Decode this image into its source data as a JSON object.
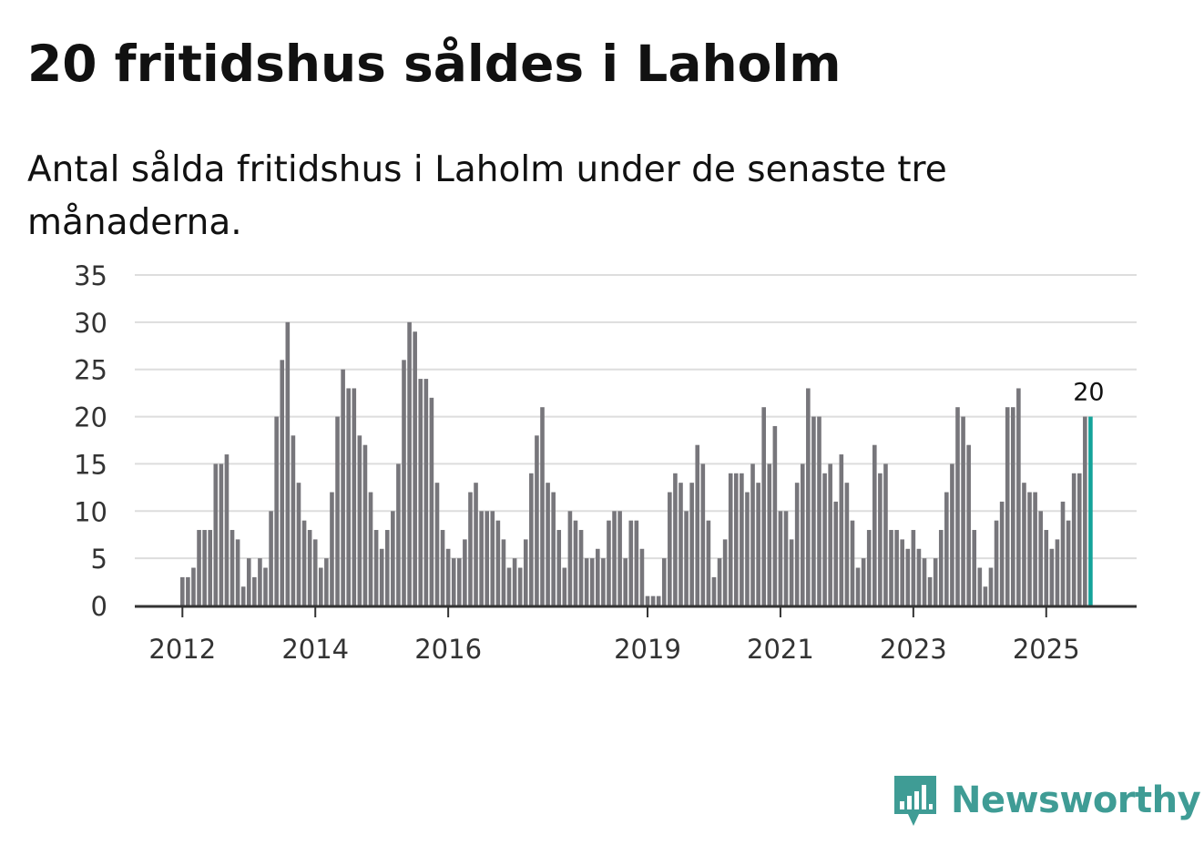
{
  "title": "20 fritidshus såldes i Laholm",
  "subtitle": "Antal sålda fritidshus i Laholm under de senaste tre månaderna.",
  "brand": {
    "name": "Newsworthy",
    "color": "#3f9c95",
    "logo_icon": "bar-chart-speech-bubble-icon"
  },
  "colors": {
    "bar": "#77767b",
    "highlight": "#14a39a",
    "grid": "#dddddd",
    "axis": "#333333",
    "text": "#111111"
  },
  "chart_data": {
    "type": "bar",
    "title": "20 fritidshus såldes i Laholm",
    "xlabel": "",
    "ylabel": "",
    "ylim": [
      0,
      35
    ],
    "yticks": [
      0,
      5,
      10,
      15,
      20,
      25,
      30,
      35
    ],
    "xtick_labels": [
      "2012",
      "2014",
      "2016",
      "2019",
      "2021",
      "2023",
      "2025"
    ],
    "xtick_index": [
      0,
      24,
      48,
      84,
      108,
      132,
      156
    ],
    "start_offset": 0,
    "grid": true,
    "legend": "none",
    "highlight_last": true,
    "annotation": {
      "label": "20",
      "bar": "last"
    },
    "values": [
      3,
      3,
      4,
      8,
      8,
      8,
      15,
      15,
      16,
      8,
      7,
      2,
      5,
      3,
      5,
      4,
      10,
      20,
      26,
      30,
      18,
      13,
      9,
      8,
      7,
      4,
      5,
      12,
      20,
      25,
      23,
      23,
      18,
      17,
      12,
      8,
      6,
      8,
      10,
      15,
      26,
      30,
      29,
      24,
      24,
      22,
      13,
      8,
      6,
      5,
      5,
      7,
      12,
      13,
      10,
      10,
      10,
      9,
      7,
      4,
      5,
      4,
      7,
      14,
      18,
      21,
      13,
      12,
      8,
      4,
      10,
      9,
      8,
      5,
      5,
      6,
      5,
      9,
      10,
      10,
      5,
      9,
      9,
      6,
      1,
      1,
      1,
      5,
      12,
      14,
      13,
      10,
      13,
      17,
      15,
      9,
      3,
      5,
      7,
      14,
      14,
      14,
      12,
      15,
      13,
      21,
      15,
      19,
      10,
      10,
      7,
      13,
      15,
      23,
      20,
      20,
      14,
      15,
      11,
      16,
      13,
      9,
      4,
      5,
      8,
      17,
      14,
      15,
      8,
      8,
      7,
      6,
      8,
      6,
      5,
      3,
      5,
      8,
      12,
      15,
      21,
      20,
      17,
      8,
      4,
      2,
      4,
      9,
      11,
      21,
      21,
      23,
      13,
      12,
      12,
      10,
      8,
      6,
      7,
      11,
      9,
      14,
      14,
      20,
      20
    ]
  }
}
